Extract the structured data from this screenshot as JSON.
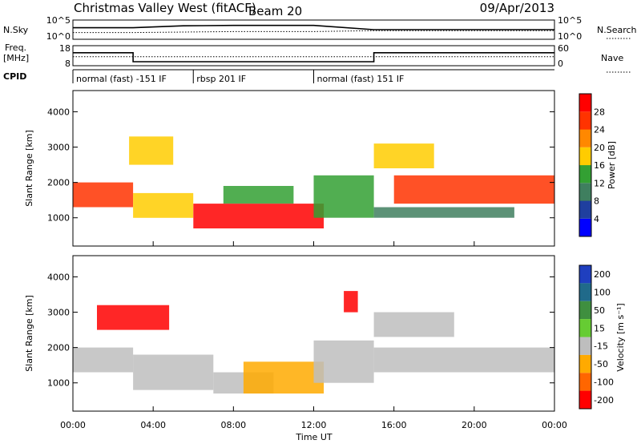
{
  "header": {
    "station": "Christmas Valley West (fitACF)",
    "beam": "Beam 20",
    "date": "09/Apr/2013"
  },
  "side_labels": {
    "nsky": "N.Sky",
    "nsearch": "N.Search",
    "freq": "Freq.",
    "freq_unit": "[MHz]",
    "nave": "Nave",
    "cpid": "CPID"
  },
  "time_axis": {
    "label": "Time UT",
    "ticks": [
      "00:00",
      "04:00",
      "08:00",
      "12:00",
      "16:00",
      "20:00",
      "00:00"
    ]
  },
  "colors": {
    "power": [
      "#0000ff",
      "#1f3f9f",
      "#3f7f5f",
      "#33a033",
      "#ffcc00",
      "#ff8800",
      "#ff3300",
      "#ff0000"
    ],
    "velocity": [
      "#1f3fbf",
      "#206a8a",
      "#3f8f3f",
      "#66cc33",
      "#bebebe",
      "#ffaa00",
      "#ff6600",
      "#ff0000"
    ],
    "ground": "#bebebe"
  },
  "chart_data": [
    {
      "type": "line",
      "name": "noise",
      "x_range": [
        0,
        24
      ],
      "y_ticks_left": [
        "10^5",
        "10^0"
      ],
      "y_ticks_right": [
        "10^5",
        "10^0"
      ],
      "series": [
        {
          "name": "N.Sky",
          "x": [
            0,
            3,
            5.5,
            8,
            12,
            15,
            18,
            24
          ],
          "values": [
            0.6,
            0.6,
            0.7,
            0.72,
            0.72,
            0.5,
            0.5,
            0.5
          ]
        },
        {
          "name": "N.Search",
          "x": [
            0,
            3,
            8,
            12,
            15,
            24
          ],
          "values": [
            0.35,
            0.35,
            0.4,
            0.4,
            0.45,
            0.45
          ]
        }
      ]
    },
    {
      "type": "line",
      "name": "frequency",
      "x_range": [
        0,
        24
      ],
      "y_ticks_left": [
        "18",
        "8"
      ],
      "y_ticks_right": [
        "60",
        "0"
      ],
      "series": [
        {
          "name": "Freq.",
          "x": [
            0,
            3,
            3,
            15,
            15,
            24
          ],
          "values": [
            14.5,
            14.5,
            10,
            10,
            14.5,
            14.5
          ]
        },
        {
          "name": "Nave",
          "x": [
            0,
            24
          ],
          "values": [
            12.5,
            12.5
          ]
        }
      ]
    },
    {
      "type": "table",
      "name": "cpid",
      "segments": [
        {
          "start": 0,
          "end": 6,
          "label": "normal (fast) -151 IF"
        },
        {
          "start": 6,
          "end": 12,
          "label": "rbsp 201 IF"
        },
        {
          "start": 12,
          "end": 24,
          "label": "normal (fast) 151 IF"
        }
      ]
    },
    {
      "type": "heatmap",
      "name": "power",
      "x_range": [
        0,
        24
      ],
      "ylabel": "Slant Range [km]",
      "ylim": [
        200,
        4600
      ],
      "y_ticks": [
        1000,
        2000,
        3000,
        4000
      ],
      "colorbar": {
        "label": "Power [dB]",
        "ticks": [
          4,
          8,
          12,
          16,
          20,
          24,
          28
        ]
      },
      "bands": [
        {
          "x0": 0,
          "x1": 3,
          "y0": 1300,
          "y1": 2000,
          "level": 6
        },
        {
          "x0": 2.8,
          "x1": 5,
          "y0": 2500,
          "y1": 3300,
          "level": 4
        },
        {
          "x0": 3,
          "x1": 6,
          "y0": 1000,
          "y1": 1700,
          "level": 4
        },
        {
          "x0": 6,
          "x1": 12.5,
          "y0": 700,
          "y1": 1400,
          "level": 7
        },
        {
          "x0": 7.5,
          "x1": 11,
          "y0": 1400,
          "y1": 1900,
          "level": 3
        },
        {
          "x0": 12,
          "x1": 15,
          "y0": 1000,
          "y1": 2200,
          "level": 3
        },
        {
          "x0": 15,
          "x1": 18,
          "y0": 2400,
          "y1": 3100,
          "level": 4
        },
        {
          "x0": 16,
          "x1": 24,
          "y0": 1400,
          "y1": 2200,
          "level": 6
        },
        {
          "x0": 15,
          "x1": 22,
          "y0": 1000,
          "y1": 1300,
          "level": 2
        }
      ]
    },
    {
      "type": "heatmap",
      "name": "velocity",
      "x_range": [
        0,
        24
      ],
      "ylabel": "Slant Range [km]",
      "ylim": [
        200,
        4600
      ],
      "y_ticks": [
        1000,
        2000,
        3000,
        4000
      ],
      "colorbar": {
        "label": "Velocity [m s⁻¹]",
        "ticks": [
          200,
          100,
          50,
          15,
          -15,
          -50,
          -100,
          -200
        ]
      },
      "bands": [
        {
          "x0": 0,
          "x1": 3,
          "y0": 1300,
          "y1": 2000,
          "level": 4
        },
        {
          "x0": 1.2,
          "x1": 4.8,
          "y0": 2500,
          "y1": 3200,
          "level": 7
        },
        {
          "x0": 3,
          "x1": 7,
          "y0": 800,
          "y1": 1800,
          "level": 4
        },
        {
          "x0": 7,
          "x1": 10,
          "y0": 700,
          "y1": 1300,
          "level": 4
        },
        {
          "x0": 8.5,
          "x1": 12.5,
          "y0": 700,
          "y1": 1600,
          "level": 5
        },
        {
          "x0": 12,
          "x1": 15,
          "y0": 1000,
          "y1": 2200,
          "level": 4
        },
        {
          "x0": 15,
          "x1": 19,
          "y0": 2300,
          "y1": 3000,
          "level": 4
        },
        {
          "x0": 15,
          "x1": 24,
          "y0": 1300,
          "y1": 2000,
          "level": 4
        },
        {
          "x0": 13.5,
          "x1": 14.2,
          "y0": 3000,
          "y1": 3600,
          "level": 7
        }
      ]
    }
  ]
}
